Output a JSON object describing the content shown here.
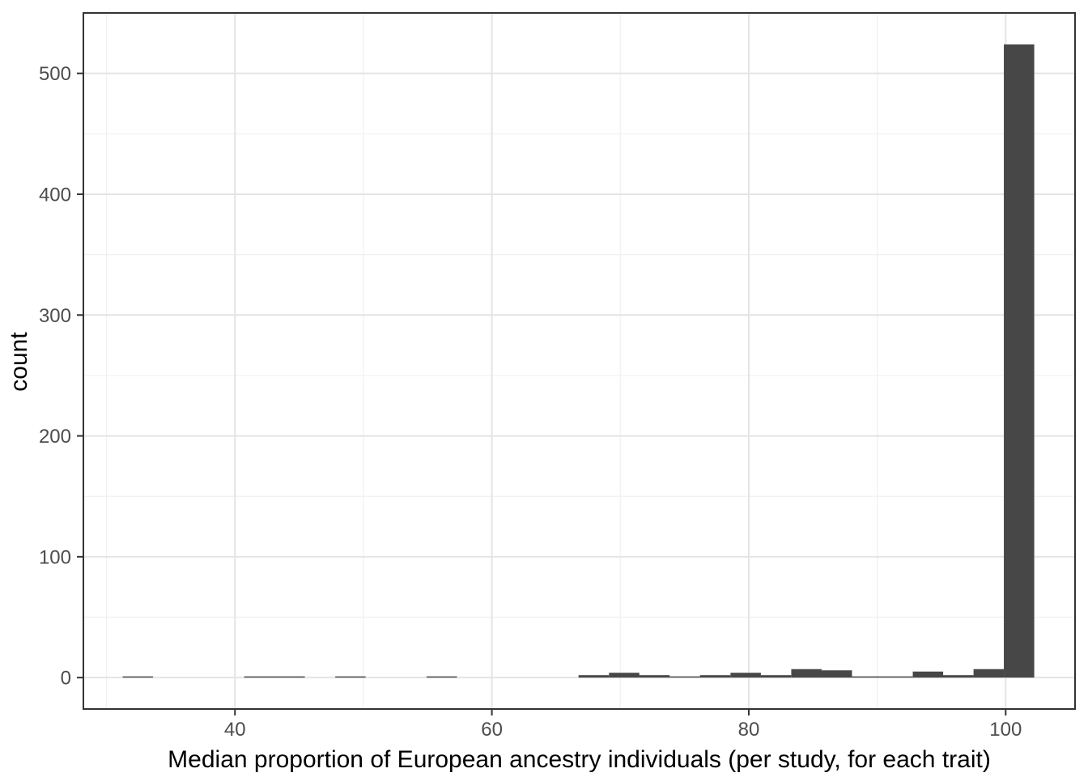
{
  "chart_data": {
    "type": "bar",
    "subtype": "histogram",
    "title": "",
    "xlabel": "Median proportion of European ancestry individuals (per study, for each trait)",
    "ylabel": "count",
    "xlim": [
      28.2,
      105.4
    ],
    "ylim": [
      -26,
      550
    ],
    "grid": true,
    "legend_position": "none",
    "x_ticks": [
      40,
      60,
      80,
      100
    ],
    "x_tick_labels": [
      "40",
      "60",
      "80",
      "100"
    ],
    "x_minor_gridlines": [
      30,
      50,
      70,
      90
    ],
    "y_ticks": [
      0,
      100,
      200,
      300,
      400,
      500
    ],
    "y_tick_labels": [
      "0",
      "100",
      "200",
      "300",
      "400",
      "500"
    ],
    "y_minor_gridlines": [
      50,
      150,
      250,
      350,
      450
    ],
    "bin_width": 2.365,
    "bars": [
      {
        "x": 32.44,
        "count": 1
      },
      {
        "x": 41.9,
        "count": 1
      },
      {
        "x": 44.26,
        "count": 1
      },
      {
        "x": 48.99,
        "count": 1
      },
      {
        "x": 56.1,
        "count": 1
      },
      {
        "x": 67.93,
        "count": 2
      },
      {
        "x": 70.3,
        "count": 4
      },
      {
        "x": 72.66,
        "count": 2
      },
      {
        "x": 75.03,
        "count": 1
      },
      {
        "x": 77.39,
        "count": 2
      },
      {
        "x": 79.76,
        "count": 4
      },
      {
        "x": 82.12,
        "count": 2
      },
      {
        "x": 84.49,
        "count": 7
      },
      {
        "x": 86.85,
        "count": 6
      },
      {
        "x": 89.22,
        "count": 1
      },
      {
        "x": 91.58,
        "count": 1
      },
      {
        "x": 93.95,
        "count": 5
      },
      {
        "x": 96.31,
        "count": 2
      },
      {
        "x": 98.68,
        "count": 7
      },
      {
        "x": 101.04,
        "count": 524
      }
    ],
    "colors": {
      "bar_fill": "#474747",
      "panel_background": "#ffffff",
      "panel_border": "#333333",
      "grid_major": "#e4e4e4",
      "grid_minor": "#f0f0f0",
      "tick_mark": "#333333",
      "tick_label": "#4d4d4d",
      "axis_title": "#000000"
    }
  }
}
